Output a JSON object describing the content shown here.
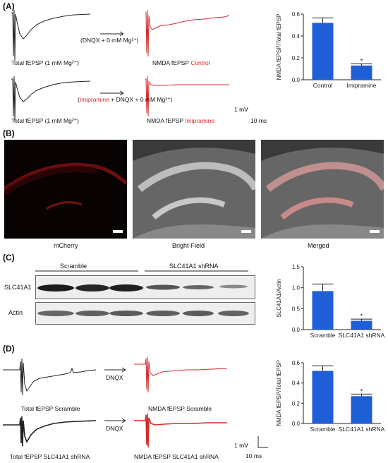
{
  "panels": {
    "A": {
      "label": "(A)",
      "row1": {
        "left_caption": "Total fEPSP (1 mM Mg²⁺)",
        "arrow_label": "(DNQX + 0 mM Mg²⁺)",
        "right_caption_black": "NMDA fEPSP",
        "right_caption_red": "Control"
      },
      "row2": {
        "left_caption": "Total fEPSP (1 mM Mg²⁺)",
        "arrow_label_red": "Imipramine",
        "arrow_label_rest": " + DNQX + 0 mM Mg²⁺)",
        "arrow_label_open": "(",
        "right_caption_black": "NMDA fEPSP",
        "right_caption_red": "Imipramine"
      },
      "scale": {
        "v": "1 mV",
        "t": "10 ms"
      }
    },
    "B": {
      "label": "(B)",
      "captions": [
        "mCherry",
        "Bright-Field",
        "Merged"
      ]
    },
    "C": {
      "label": "(C)",
      "groups": [
        "Scramble",
        "SLC41A1 shRNA"
      ],
      "rows": [
        "SLC41A1",
        "Actin"
      ]
    },
    "D": {
      "label": "(D)",
      "row1": {
        "left_caption": "Total fEPSP Scramble",
        "arrow_label": "DNQX",
        "right_caption": "NMDA fEPSP Scramble"
      },
      "row2": {
        "left_caption": "Total fEPSP SLC41A1 shRNA",
        "arrow_label": "DNQX",
        "right_caption": "NMDA fEPSP SLC41A1 shRNA"
      },
      "scale": {
        "v": "1 mV",
        "t": "10 ms"
      }
    }
  },
  "colors": {
    "bar": "#1f5fd6",
    "red": "#d42a2a"
  },
  "chart_data": [
    {
      "type": "bar",
      "panel": "A",
      "categories": [
        "Control",
        "Imipramine"
      ],
      "values": [
        0.52,
        0.13
      ],
      "errors": [
        0.045,
        0.015
      ],
      "significance": [
        "",
        "*"
      ],
      "ylabel": "NMDA fEPSP/Total fEPSP",
      "ylim": [
        0,
        0.6
      ],
      "yticks": [
        "0.0",
        "0.2",
        "0.4",
        "0.6"
      ]
    },
    {
      "type": "bar",
      "panel": "C",
      "categories": [
        "Scramble",
        "SLC41A1 shRNA"
      ],
      "values": [
        0.92,
        0.21
      ],
      "errors": [
        0.17,
        0.04
      ],
      "significance": [
        "",
        "*"
      ],
      "ylabel": "SLC41A1/Actin",
      "ylim": [
        0,
        1.5
      ],
      "yticks": [
        "0.0",
        "0.5",
        "1.0",
        "1.5"
      ]
    },
    {
      "type": "bar",
      "panel": "D",
      "categories": [
        "Scramble",
        "SLC41A1 shRNA"
      ],
      "values": [
        0.52,
        0.27
      ],
      "errors": [
        0.05,
        0.02
      ],
      "significance": [
        "",
        "*"
      ],
      "ylabel": "NMDA fEPSP/Total fEPSP",
      "ylim": [
        0,
        0.6
      ],
      "yticks": [
        "0.0",
        "0.2",
        "0.4",
        "0.6"
      ]
    }
  ]
}
